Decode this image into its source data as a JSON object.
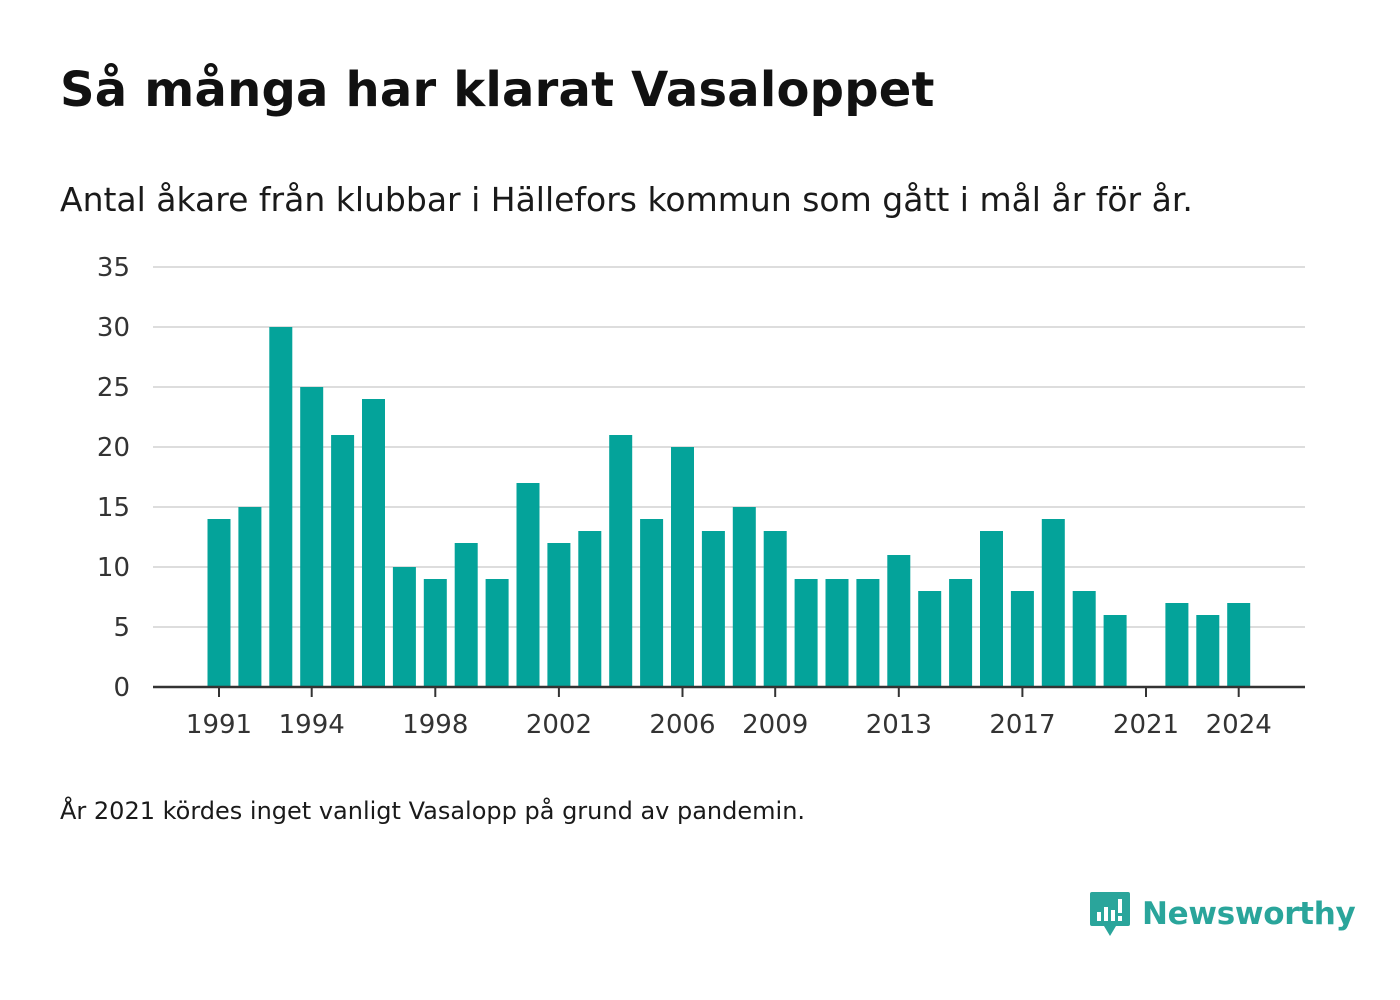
{
  "header": {
    "title": "Så många har klarat Vasaloppet",
    "subtitle": "Antal åkare från klubbar i Hällefors kommun som gått i mål år för år."
  },
  "footnote": "År 2021 kördes inget vanligt Vasalopp på grund av pandemin.",
  "brand": {
    "name": "Newsworthy",
    "icon": "newsworthy-logo-icon"
  },
  "colors": {
    "bar": "#04a39a",
    "grid": "#dddddd",
    "axis": "#333333",
    "brand": "#2aa59b"
  },
  "chart_data": {
    "type": "bar",
    "title": "Så många har klarat Vasaloppet",
    "subtitle": "Antal åkare från klubbar i Hällefors kommun som gått i mål år för år.",
    "xlabel": "",
    "ylabel": "",
    "ylim": [
      0,
      35
    ],
    "yticks": [
      0,
      5,
      10,
      15,
      20,
      25,
      30,
      35
    ],
    "xticks": [
      1991,
      1994,
      1998,
      2002,
      2006,
      2009,
      2013,
      2017,
      2021,
      2024
    ],
    "grid": true,
    "categories": [
      1991,
      1992,
      1993,
      1994,
      1995,
      1996,
      1997,
      1998,
      1999,
      2000,
      2001,
      2002,
      2003,
      2004,
      2005,
      2006,
      2007,
      2008,
      2009,
      2010,
      2011,
      2012,
      2013,
      2014,
      2015,
      2016,
      2017,
      2018,
      2019,
      2020,
      2021,
      2022,
      2023,
      2024
    ],
    "values": [
      14,
      15,
      30,
      25,
      21,
      24,
      10,
      9,
      12,
      9,
      17,
      12,
      13,
      21,
      14,
      20,
      13,
      15,
      13,
      9,
      9,
      9,
      11,
      8,
      9,
      13,
      8,
      14,
      8,
      6,
      0,
      7,
      6,
      7
    ]
  }
}
